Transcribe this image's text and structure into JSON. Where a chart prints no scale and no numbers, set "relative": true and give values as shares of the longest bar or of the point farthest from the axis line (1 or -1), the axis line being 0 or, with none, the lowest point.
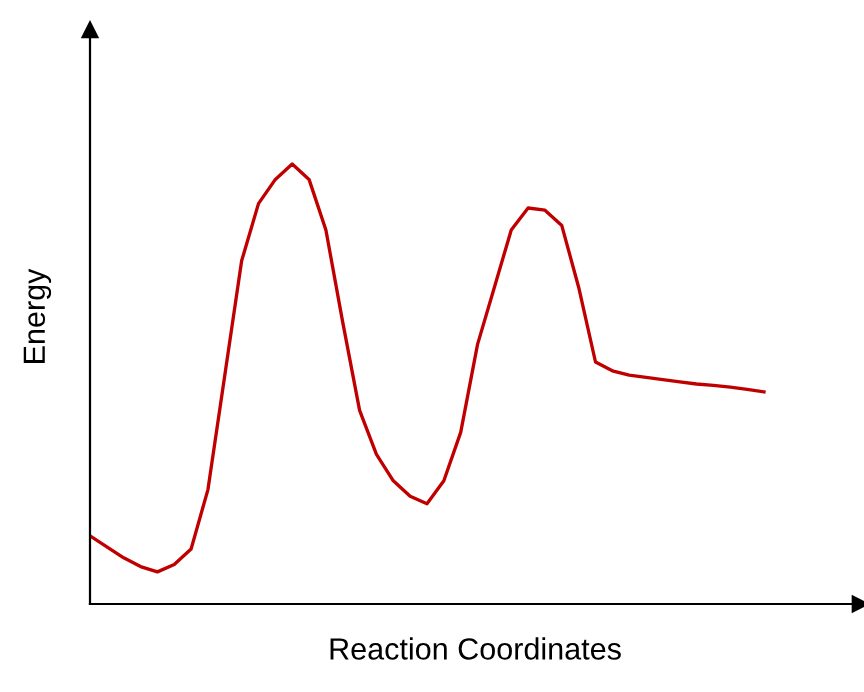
{
  "chart_data": {
    "type": "line",
    "relative": true,
    "xlabel": "Reaction Coordinates",
    "ylabel": "Energy",
    "categories": [
      null,
      null,
      null,
      null,
      null,
      null,
      null,
      null,
      null,
      null,
      null,
      null,
      null,
      null,
      null,
      null,
      null,
      null,
      null,
      null,
      null,
      null,
      null,
      null,
      null,
      null,
      null,
      null,
      null,
      null,
      null,
      null,
      null,
      null,
      null,
      null,
      null,
      null,
      null,
      null,
      null
    ],
    "series": [
      {
        "color": "#c00000",
        "values": [
          0.155,
          0.13,
          0.105,
          0.085,
          0.073,
          0.09,
          0.125,
          0.26,
          0.52,
          0.78,
          0.91,
          0.965,
          1.0,
          0.965,
          0.85,
          0.64,
          0.44,
          0.34,
          0.28,
          0.245,
          0.228,
          0.28,
          0.39,
          0.59,
          0.72,
          0.85,
          0.9,
          0.895,
          0.86,
          0.72,
          0.55,
          0.53,
          0.52,
          0.515,
          0.51,
          0.505,
          0.5,
          0.497,
          0.493,
          0.488,
          0.482
        ]
      }
    ],
    "tick_labels": false
  }
}
